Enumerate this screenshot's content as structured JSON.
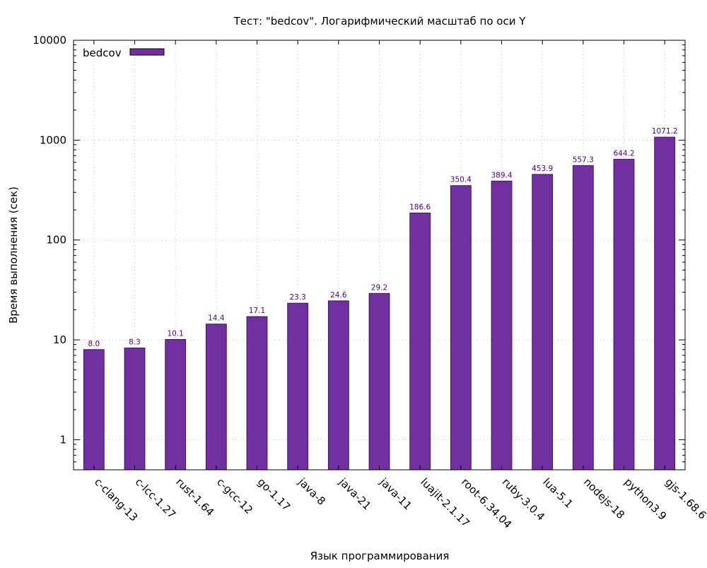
{
  "chart_data": {
    "type": "bar",
    "title": "Тест: \"bedcov\". Логарифмический масштаб по оси Y",
    "xlabel": "Язык программирования",
    "ylabel": "Время выполнения (сек)",
    "yscale": "log",
    "ylim": [
      0.5,
      10000
    ],
    "yticks": [
      1,
      10,
      100,
      1000,
      10000
    ],
    "grid": true,
    "legend_position": "top-left",
    "bar_color": "#7030a0",
    "label_color": "#4b0082",
    "categories": [
      "c-clang-13",
      "c-lcc-1.27",
      "rust-1.64",
      "c-gcc-12",
      "go-1.17",
      "java-8",
      "java-21",
      "java-11",
      "luajit-2.1.17",
      "root-6.34.04",
      "ruby-3.0.4",
      "lua-5.1",
      "nodejs-18",
      "python3.9",
      "gjs-1.68.6"
    ],
    "series": [
      {
        "name": "bedcov",
        "values": [
          8.0,
          8.3,
          10.1,
          14.4,
          17.1,
          23.3,
          24.6,
          29.2,
          186.6,
          350.4,
          389.4,
          453.9,
          557.3,
          644.2,
          1071.2
        ],
        "labels": [
          "8.0",
          "8.3",
          "10.1",
          "14.4",
          "17.1",
          "23.3",
          "24.6",
          "29.2",
          "186.6",
          "350.4",
          "389.4",
          "453.9",
          "557.3",
          "644.2",
          "1071.2"
        ]
      }
    ]
  }
}
